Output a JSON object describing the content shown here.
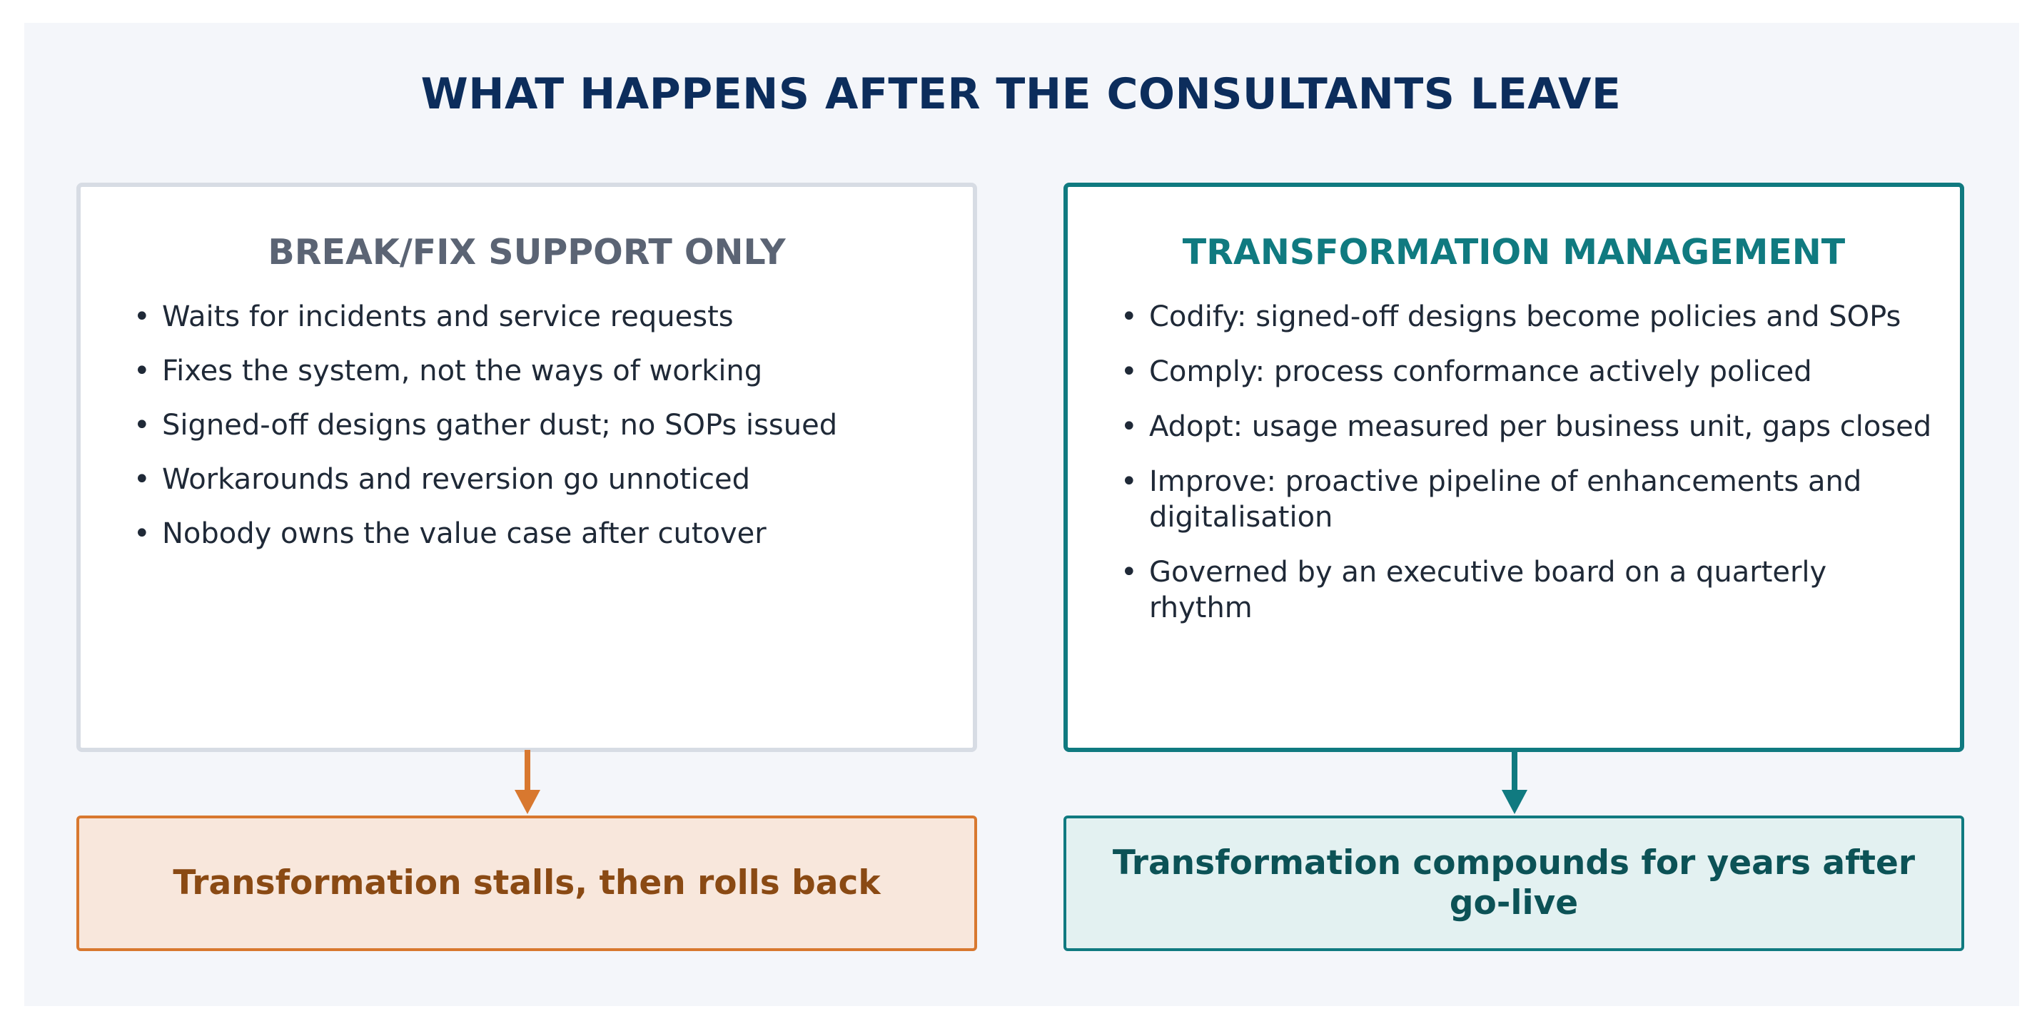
{
  "title": "WHAT HAPPENS AFTER THE CONSULTANTS LEAVE",
  "colors": {
    "background": "#f4f6fa",
    "title": "#0c2d5c",
    "left_border": "#d7dce4",
    "left_heading": "#5b6474",
    "right_accent": "#107a80",
    "left_outcome_fill": "#f8e7dc",
    "left_outcome_border": "#d8782f",
    "left_outcome_text": "#8a4a14",
    "right_outcome_fill": "#e3f1f1",
    "right_outcome_text": "#0c5256"
  },
  "left": {
    "heading": "BREAK/FIX SUPPORT ONLY",
    "bullet_symbol": "•",
    "bullets": [
      "Waits for incidents and service requests",
      "Fixes the system, not the ways of working",
      "Signed-off designs gather dust; no SOPs issued",
      "Workarounds and reversion go unnoticed",
      "Nobody owns the value case after cutover"
    ],
    "outcome": "Transformation stalls, then rolls back"
  },
  "right": {
    "heading": "TRANSFORMATION MANAGEMENT",
    "bullet_symbol": "•",
    "bullets": [
      "Codify: signed-off designs become policies and SOPs",
      "Comply: process conformance actively policed",
      "Adopt: usage measured per business unit, gaps closed",
      "Improve: proactive pipeline of enhancements and digitalisation",
      "Governed by an executive board on a quarterly rhythm"
    ],
    "outcome": "Transformation compounds for years after go-live"
  }
}
